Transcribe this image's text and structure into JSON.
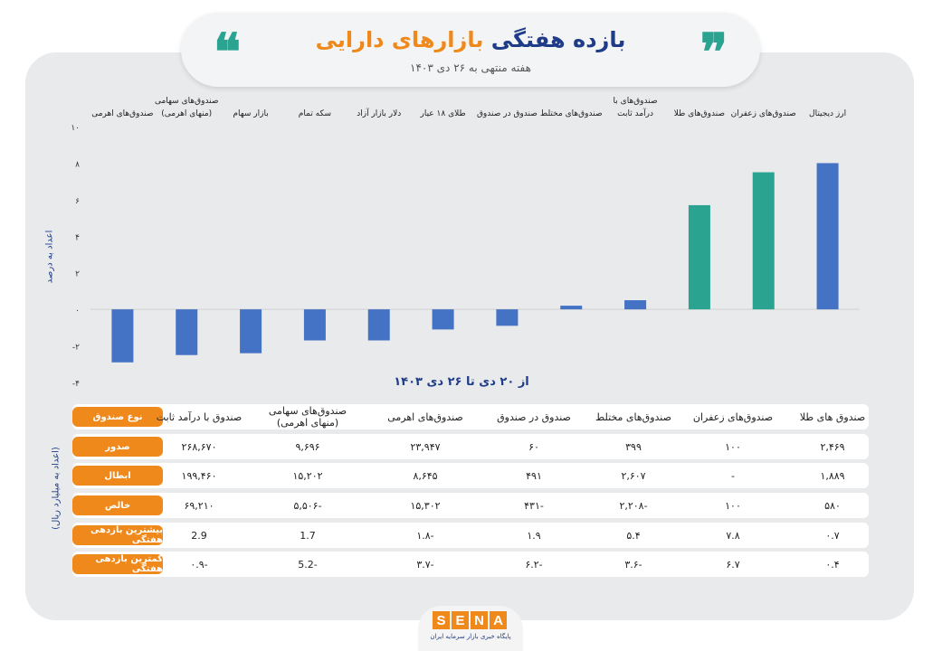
{
  "header": {
    "title_part1": "بازده هفتگی",
    "title_part2": "بازارهای دارایی",
    "subtitle": "هفته منتهی به ۲۶ دی ۱۴۰۳"
  },
  "colors": {
    "blue": "#4472c4",
    "teal": "#2aa390",
    "orange": "#f0891c",
    "navy": "#1f3c88"
  },
  "chart_data": {
    "type": "bar",
    "categories": [
      "ارز دیجیتال",
      "صندوق‌های زعفران",
      "صندوق‌های طلا",
      "صندوق‌های با درآمد ثابت",
      "صندوق‌های مختلط",
      "صندوق در صندوق",
      "طلای ۱۸ عیار",
      "دلار بازار آزاد",
      "سکه تمام",
      "بازار سهام",
      "صندوق‌های سهامی (منهای اهرمی)",
      "صندوق‌های اهرمی"
    ],
    "values": [
      8.0,
      7.5,
      5.7,
      0.5,
      0.2,
      -0.9,
      -1.1,
      -1.7,
      -1.7,
      -2.4,
      -2.5,
      -2.9
    ],
    "bar_colors": [
      "#4472c4",
      "#2aa390",
      "#2aa390",
      "#4472c4",
      "#4472c4",
      "#4472c4",
      "#4472c4",
      "#4472c4",
      "#4472c4",
      "#4472c4",
      "#4472c4",
      "#4472c4"
    ],
    "yticks": [
      "۱۰",
      "۸",
      "۶",
      "۴",
      "۲",
      "۰",
      "-۲",
      "-۴"
    ],
    "ylim": [
      -4,
      10
    ],
    "ylabel": "اعداد به درصد",
    "xlabel": "از ۲۰ دی تا ۲۶ دی ۱۴۰۳"
  },
  "table": {
    "side_label": "(اعداد به میلیارد ریال)",
    "type_header": "نوع صندوق",
    "columns": [
      "صندوق‌ های طلا",
      "صندوق‌های زعفران",
      "صندوق‌های مختلط",
      "صندوق در صندوق",
      "صندوق‌های اهرمی",
      "صندوق‌های سهامی (منهای اهرمی)",
      "صندوق با درآمد ثابت"
    ],
    "rows": [
      {
        "label": "صدور",
        "values": [
          "۲,۴۶۹",
          "۱۰۰",
          "۳۹۹",
          "۶۰",
          "۲۳,۹۴۷",
          "۹,۶۹۶",
          "۲۶۸,۶۷۰"
        ]
      },
      {
        "label": "ابطال",
        "values": [
          "۱,۸۸۹",
          "-",
          "۲,۶۰۷",
          "۴۹۱",
          "۸,۶۴۵",
          "۱۵,۲۰۲",
          "۱۹۹,۴۶۰"
        ]
      },
      {
        "label": "خالص",
        "values": [
          "۵۸۰",
          "۱۰۰",
          "-۲,۲۰۸",
          "-۴۳۱",
          "۱۵,۳۰۲",
          "-۵,۵۰۶",
          "۶۹,۲۱۰"
        ]
      },
      {
        "label": "بیشترین  بازدهی هفتگی",
        "values": [
          "۰.۷",
          "۷.۸",
          "۵.۴",
          "۱.۹",
          "-۱.۸",
          "1.7",
          "2.9"
        ]
      },
      {
        "label": "کمترین  بازدهی هفتگی",
        "values": [
          "۰.۴",
          "۶.۷",
          "-۳.۶",
          "-۶.۲",
          "-۳.۷",
          "-5.2",
          "-۰.۹"
        ]
      }
    ]
  },
  "logo": {
    "letters": [
      "S",
      "E",
      "N",
      "A"
    ],
    "tagline": "پایگاه خبری بازار سرمایه ایران"
  },
  "icons": {
    "quote_left": "open-quote-icon",
    "quote_right": "close-quote-icon"
  }
}
